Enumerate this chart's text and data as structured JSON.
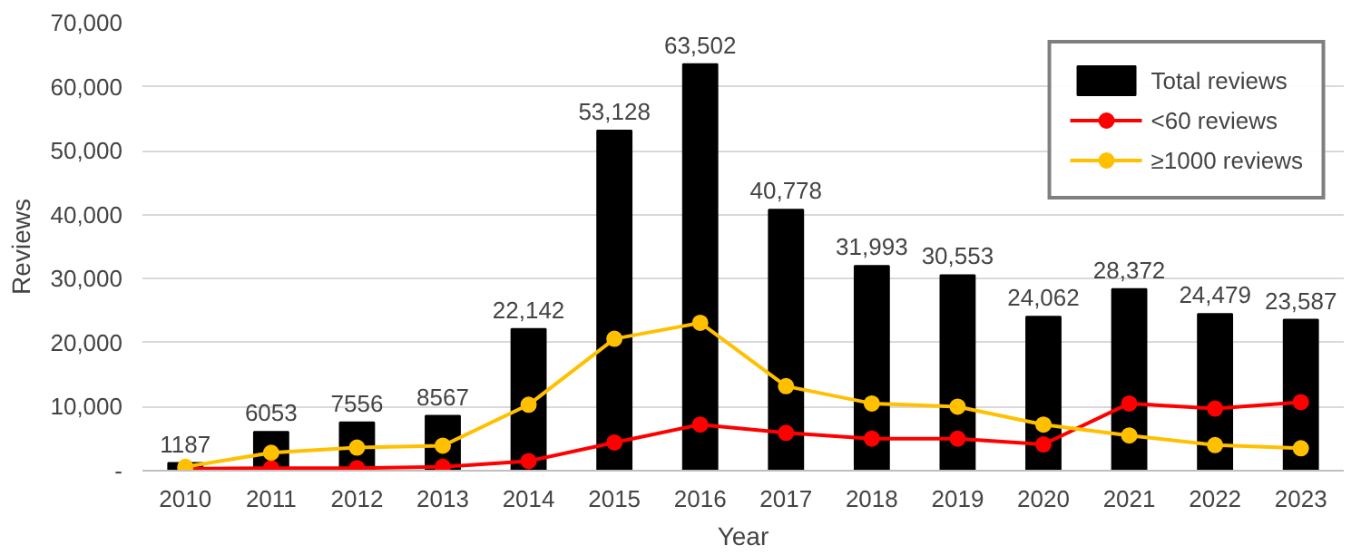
{
  "chart_data": {
    "type": "bar",
    "xlabel": "Year",
    "ylabel": "Reviews",
    "categories": [
      "2010",
      "2011",
      "2012",
      "2013",
      "2014",
      "2015",
      "2016",
      "2017",
      "2018",
      "2019",
      "2020",
      "2021",
      "2022",
      "2023"
    ],
    "series": [
      {
        "name": "Total reviews",
        "color": "#000000",
        "values": [
          1187,
          6053,
          7556,
          8567,
          22142,
          53128,
          63502,
          40778,
          31993,
          30553,
          24062,
          28372,
          24479,
          23587
        ],
        "value_labels": [
          "1187",
          "6053",
          "7556",
          "8567",
          "22,142",
          "53,128",
          "63,502",
          "40,778",
          "31,993",
          "30,553",
          "24,062",
          "28,372",
          "24,479",
          "23,587"
        ]
      },
      {
        "name": "<60 reviews",
        "type": "line",
        "color": "#ff0000",
        "values": [
          300,
          400,
          400,
          600,
          1500,
          4400,
          7200,
          5900,
          5000,
          5000,
          4100,
          10500,
          9700,
          10700
        ]
      },
      {
        "name": "≥1000 reviews",
        "type": "line",
        "color": "#ffc000",
        "values": [
          600,
          2800,
          3600,
          3900,
          10300,
          20600,
          23100,
          13200,
          10500,
          10000,
          7200,
          5500,
          4000,
          3500
        ]
      }
    ],
    "ylim": [
      0,
      70000
    ],
    "yticks": [
      {
        "value": 0,
        "label": "-"
      },
      {
        "value": 10000,
        "label": "10,000"
      },
      {
        "value": 20000,
        "label": "20,000"
      },
      {
        "value": 30000,
        "label": "30,000"
      },
      {
        "value": 40000,
        "label": "40,000"
      },
      {
        "value": 50000,
        "label": "50,000"
      },
      {
        "value": 60000,
        "label": "60,000"
      },
      {
        "value": 70000,
        "label": "70,000"
      }
    ],
    "grid": "y",
    "legend": "top right",
    "marker": "circle",
    "line_style": "solid"
  }
}
